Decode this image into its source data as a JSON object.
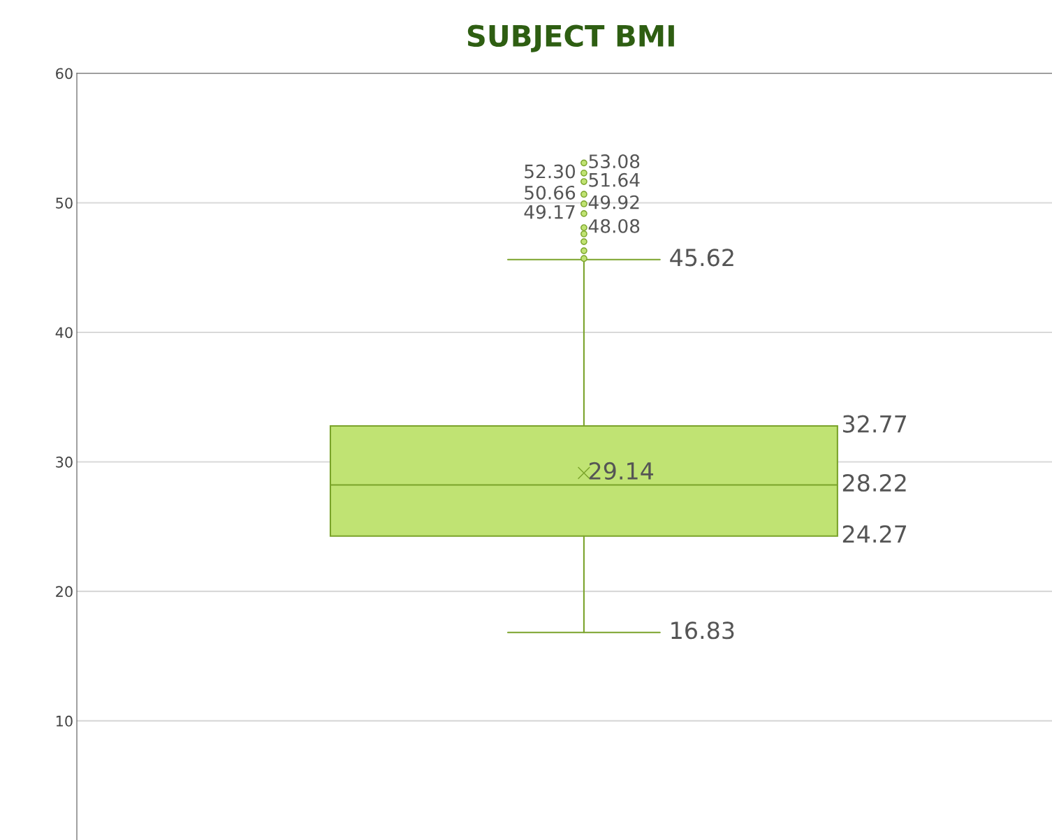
{
  "chart_data": {
    "type": "box",
    "title": "SUBJECT BMI",
    "categories": [
      null
    ],
    "color": "#c0e373",
    "boxes": [
      {
        "low": 16.83,
        "q1": 24.27,
        "median": 28.22,
        "q3": 32.77,
        "high": 45.62,
        "mean": 29.14,
        "outliers": [
          53.08,
          52.3,
          51.64,
          50.66,
          49.92,
          49.17,
          48.08,
          47.6,
          47.0,
          46.3,
          45.7
        ]
      }
    ],
    "annotations": [
      "16.83",
      "24.27",
      "28.22",
      "32.77",
      "45.62",
      "29.14",
      "53.08",
      "52.30",
      "51.64",
      "50.66",
      "49.92",
      "49.17",
      "48.08"
    ],
    "ylim": [
      0.8,
      60
    ],
    "yticks": [
      10,
      20,
      30,
      40,
      50,
      60
    ],
    "grid": "y"
  }
}
